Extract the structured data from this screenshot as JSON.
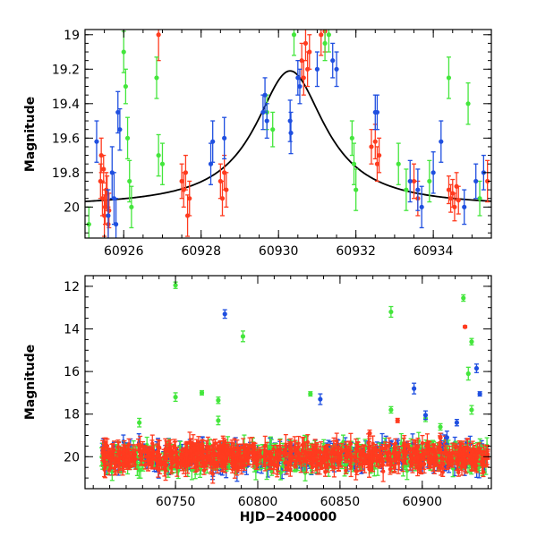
{
  "colors": {
    "red": "#ff3b1f",
    "green": "#44e63c",
    "blue": "#1f4fe0",
    "model": "#000000"
  },
  "chart_data": [
    {
      "type": "scatter",
      "panel": "top",
      "xlabel": "",
      "ylabel": "Magnitude",
      "xlim": [
        60925.0,
        60935.5
      ],
      "ylim": [
        20.18,
        18.97
      ],
      "y_inverted": true,
      "x_ticks": [
        60926,
        60928,
        60930,
        60932,
        60934
      ],
      "x_tick_labels": [
        "60926",
        "60928",
        "60930",
        "60932",
        "60934"
      ],
      "y_ticks": [
        19,
        19.2,
        19.4,
        19.6,
        19.8,
        20
      ],
      "y_tick_labels": [
        "19",
        "19.2",
        "19.4",
        "19.6",
        "19.8",
        "20"
      ],
      "model_curve": {
        "type": "lorentzian",
        "peak_x": 60930.3,
        "peak_mag": 19.21,
        "baseline_mag": 20.0,
        "half_width_days": 1.1
      },
      "series": [
        {
          "color": "red",
          "points": [
            [
              60925.4,
              19.85,
              0.1
            ],
            [
              60925.45,
              19.95,
              0.1
            ],
            [
              60925.5,
              20.05,
              0.12
            ],
            [
              60925.55,
              19.9,
              0.1
            ],
            [
              60925.6,
              20.1,
              0.1
            ],
            [
              60925.48,
              19.78,
              0.08
            ],
            [
              60925.52,
              20.0,
              0.1
            ],
            [
              60925.57,
              19.92,
              0.1
            ],
            [
              60925.62,
              20.02,
              0.1
            ],
            [
              60925.42,
              19.7,
              0.1
            ],
            [
              60926.9,
              19.0,
              0.15
            ],
            [
              60927.5,
              19.85,
              0.1
            ],
            [
              60927.55,
              19.9,
              0.1
            ],
            [
              60927.6,
              19.8,
              0.1
            ],
            [
              60927.65,
              20.05,
              0.12
            ],
            [
              60927.7,
              19.95,
              0.1
            ],
            [
              60928.5,
              19.85,
              0.1
            ],
            [
              60928.55,
              19.95,
              0.1
            ],
            [
              60928.6,
              19.8,
              0.1
            ],
            [
              60928.65,
              19.9,
              0.1
            ],
            [
              60930.6,
              19.15,
              0.1
            ],
            [
              60930.65,
              19.25,
              0.1
            ],
            [
              60930.7,
              19.05,
              0.1
            ],
            [
              60930.75,
              19.2,
              0.1
            ],
            [
              60930.8,
              19.1,
              0.1
            ],
            [
              60931.1,
              19.0,
              0.12
            ],
            [
              60931.2,
              18.98,
              0.12
            ],
            [
              60932.4,
              19.65,
              0.1
            ],
            [
              60932.5,
              19.62,
              0.1
            ],
            [
              60932.55,
              19.75,
              0.1
            ],
            [
              60932.6,
              19.7,
              0.1
            ],
            [
              60933.5,
              19.85,
              0.1
            ],
            [
              60933.6,
              19.95,
              0.1
            ],
            [
              60934.4,
              19.9,
              0.08
            ],
            [
              60934.45,
              19.95,
              0.08
            ],
            [
              60934.5,
              19.92,
              0.08
            ],
            [
              60934.55,
              20.0,
              0.08
            ],
            [
              60934.6,
              19.88,
              0.08
            ],
            [
              60934.65,
              19.96,
              0.08
            ],
            [
              60935.4,
              19.85,
              0.12
            ]
          ]
        },
        {
          "color": "green",
          "points": [
            [
              60925.1,
              20.1,
              0.1
            ],
            [
              60926.0,
              19.1,
              0.12
            ],
            [
              60926.05,
              19.3,
              0.1
            ],
            [
              60926.1,
              19.6,
              0.12
            ],
            [
              60926.15,
              19.85,
              0.12
            ],
            [
              60926.2,
              20.0,
              0.12
            ],
            [
              60926.85,
              19.25,
              0.12
            ],
            [
              60926.9,
              19.7,
              0.12
            ],
            [
              60927.0,
              19.75,
              0.12
            ],
            [
              60929.7,
              19.45,
              0.1
            ],
            [
              60929.85,
              19.55,
              0.1
            ],
            [
              60930.4,
              19.0,
              0.12
            ],
            [
              60931.2,
              19.05,
              0.1
            ],
            [
              60931.3,
              19.0,
              0.1
            ],
            [
              60931.9,
              19.6,
              0.1
            ],
            [
              60931.95,
              19.75,
              0.12
            ],
            [
              60932.0,
              19.9,
              0.12
            ],
            [
              60933.1,
              19.75,
              0.12
            ],
            [
              60933.3,
              19.9,
              0.12
            ],
            [
              60933.9,
              19.85,
              0.12
            ],
            [
              60934.4,
              19.25,
              0.12
            ],
            [
              60934.9,
              19.4,
              0.12
            ],
            [
              60935.2,
              19.95,
              0.1
            ]
          ]
        },
        {
          "color": "blue",
          "points": [
            [
              60925.3,
              19.62,
              0.12
            ],
            [
              60925.6,
              20.05,
              0.15
            ],
            [
              60925.7,
              19.8,
              0.15
            ],
            [
              60925.75,
              19.95,
              0.15
            ],
            [
              60925.8,
              20.1,
              0.15
            ],
            [
              60925.85,
              19.45,
              0.12
            ],
            [
              60925.9,
              19.55,
              0.12
            ],
            [
              60928.25,
              19.75,
              0.12
            ],
            [
              60928.3,
              19.62,
              0.12
            ],
            [
              60928.6,
              19.6,
              0.12
            ],
            [
              60929.6,
              19.45,
              0.1
            ],
            [
              60929.65,
              19.35,
              0.1
            ],
            [
              60929.7,
              19.5,
              0.1
            ],
            [
              60930.3,
              19.5,
              0.12
            ],
            [
              60930.32,
              19.57,
              0.12
            ],
            [
              60930.5,
              19.25,
              0.1
            ],
            [
              60930.55,
              19.3,
              0.1
            ],
            [
              60931.0,
              19.2,
              0.1
            ],
            [
              60931.4,
              19.15,
              0.1
            ],
            [
              60931.5,
              19.2,
              0.1
            ],
            [
              60932.5,
              19.45,
              0.1
            ],
            [
              60932.55,
              19.45,
              0.1
            ],
            [
              60933.4,
              19.85,
              0.12
            ],
            [
              60933.6,
              19.9,
              0.12
            ],
            [
              60933.7,
              20.0,
              0.12
            ],
            [
              60934.0,
              19.8,
              0.12
            ],
            [
              60934.2,
              19.62,
              0.12
            ],
            [
              60934.8,
              20.0,
              0.1
            ],
            [
              60935.1,
              19.85,
              0.1
            ],
            [
              60935.3,
              19.8,
              0.1
            ]
          ]
        }
      ]
    },
    {
      "type": "scatter",
      "panel": "bottom",
      "xlabel": "HJD−2400000",
      "ylabel": "Magnitude",
      "xlim": [
        60695,
        60942
      ],
      "ylim": [
        21.5,
        11.5
      ],
      "y_inverted": true,
      "x_ticks": [
        60750,
        60800,
        60850,
        60900
      ],
      "x_tick_labels": [
        "60750",
        "60800",
        "60850",
        "60900"
      ],
      "y_ticks": [
        12,
        14,
        16,
        18,
        20
      ],
      "y_tick_labels": [
        "12",
        "14",
        "16",
        "18",
        "20"
      ],
      "baseline_mag": 20.0,
      "dense_cloud": {
        "x_range": [
          60705,
          60940
        ],
        "scatter_mag": 0.45
      },
      "series": [
        {
          "color": "green",
          "points": [
            [
              60750,
              11.95,
              0.15
            ],
            [
              60750,
              17.2,
              0.2
            ],
            [
              60728,
              18.4,
              0.2
            ],
            [
              60766,
              17.0,
              0.1
            ],
            [
              60776,
              17.35,
              0.15
            ],
            [
              60776,
              18.3,
              0.2
            ],
            [
              60791,
              14.35,
              0.25
            ],
            [
              60832,
              17.05,
              0.1
            ],
            [
              60881,
              13.2,
              0.25
            ],
            [
              60881,
              17.8,
              0.15
            ],
            [
              60902,
              18.2,
              0.15
            ],
            [
              60925,
              12.55,
              0.15
            ],
            [
              60930,
              14.6,
              0.15
            ],
            [
              60928,
              16.1,
              0.3
            ],
            [
              60930,
              17.8,
              0.2
            ],
            [
              60911,
              18.6,
              0.15
            ]
          ]
        },
        {
          "color": "blue",
          "points": [
            [
              60780,
              13.3,
              0.2
            ],
            [
              60838,
              17.3,
              0.25
            ],
            [
              60895,
              16.8,
              0.25
            ],
            [
              60902,
              18.05,
              0.2
            ],
            [
              60921,
              18.4,
              0.15
            ],
            [
              60933,
              15.85,
              0.2
            ],
            [
              60935,
              17.05,
              0.1
            ],
            [
              60915,
              19.1,
              0.3
            ]
          ]
        },
        {
          "color": "red",
          "points": [
            [
              60926,
              13.9,
              0.05
            ],
            [
              60885,
              18.3,
              0.1
            ],
            [
              60868,
              18.9,
              0.15
            ],
            [
              60911,
              19.1,
              0.2
            ]
          ]
        }
      ]
    }
  ]
}
